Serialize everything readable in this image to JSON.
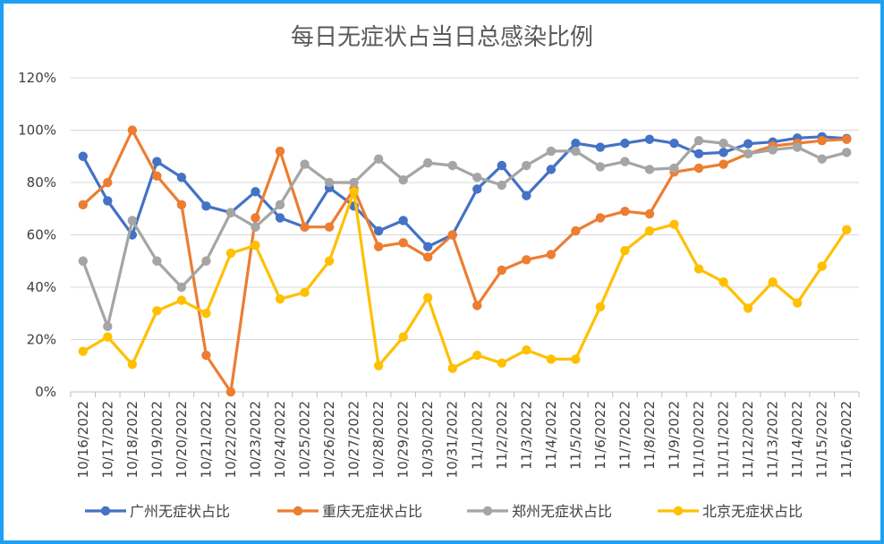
{
  "chart_data": {
    "type": "line",
    "title": "每日无症状占当日总感染比例",
    "x": [
      "10/16/2022",
      "10/17/2022",
      "10/18/2022",
      "10/19/2022",
      "10/20/2022",
      "10/21/2022",
      "10/22/2022",
      "10/23/2022",
      "10/24/2022",
      "10/25/2022",
      "10/26/2022",
      "10/27/2022",
      "10/28/2022",
      "10/29/2022",
      "10/30/2022",
      "10/31/2022",
      "11/1/2022",
      "11/2/2022",
      "11/3/2022",
      "11/4/2022",
      "11/5/2022",
      "11/6/2022",
      "11/7/2022",
      "11/8/2022",
      "11/9/2022",
      "11/10/2022",
      "11/11/2022",
      "11/12/2022",
      "11/13/2022",
      "11/14/2022",
      "11/15/2022",
      "11/16/2022"
    ],
    "y_ticks": [
      "0%",
      "20%",
      "40%",
      "60%",
      "80%",
      "100%",
      "120%"
    ],
    "ylim": [
      0,
      1.2
    ],
    "grid": true,
    "legend_position": "bottom",
    "series": [
      {
        "name": "广州无症状占比",
        "color": "#4472c4",
        "values": [
          0.9,
          0.73,
          0.6,
          0.88,
          0.82,
          0.71,
          0.685,
          0.765,
          0.665,
          0.63,
          0.78,
          0.71,
          0.615,
          0.655,
          0.555,
          0.6,
          0.775,
          0.865,
          0.75,
          0.85,
          0.95,
          0.935,
          0.95,
          0.965,
          0.95,
          0.91,
          0.915,
          0.948,
          0.955,
          0.97,
          0.975,
          0.968
        ]
      },
      {
        "name": "重庆无症状占比",
        "color": "#ed7d31",
        "values": [
          0.715,
          0.8,
          1.0,
          0.825,
          0.715,
          0.14,
          0.0,
          0.665,
          0.92,
          0.63,
          0.63,
          0.775,
          0.555,
          0.57,
          0.515,
          0.6,
          0.33,
          0.465,
          0.505,
          0.525,
          0.615,
          0.665,
          0.69,
          0.68,
          0.84,
          0.855,
          0.87,
          0.91,
          0.94,
          0.95,
          0.96,
          0.965
        ]
      },
      {
        "name": "郑州无症状占比",
        "color": "#a5a5a5",
        "values": [
          0.5,
          0.25,
          0.655,
          0.5,
          0.4,
          0.5,
          0.685,
          0.63,
          0.715,
          0.87,
          0.8,
          0.8,
          0.89,
          0.81,
          0.875,
          0.865,
          0.82,
          0.79,
          0.865,
          0.92,
          0.92,
          0.86,
          0.88,
          0.85,
          0.855,
          0.96,
          0.95,
          0.91,
          0.925,
          0.935,
          0.89,
          0.915
        ]
      },
      {
        "name": "北京无症状占比",
        "color": "#ffc000",
        "values": [
          0.155,
          0.21,
          0.105,
          0.31,
          0.35,
          0.3,
          0.53,
          0.56,
          0.355,
          0.38,
          0.5,
          0.765,
          0.1,
          0.21,
          0.36,
          0.09,
          0.14,
          0.11,
          0.16,
          0.125,
          0.125,
          0.325,
          0.54,
          0.615,
          0.64,
          0.47,
          0.42,
          0.32,
          0.42,
          0.34,
          0.48,
          0.62
        ]
      }
    ]
  }
}
